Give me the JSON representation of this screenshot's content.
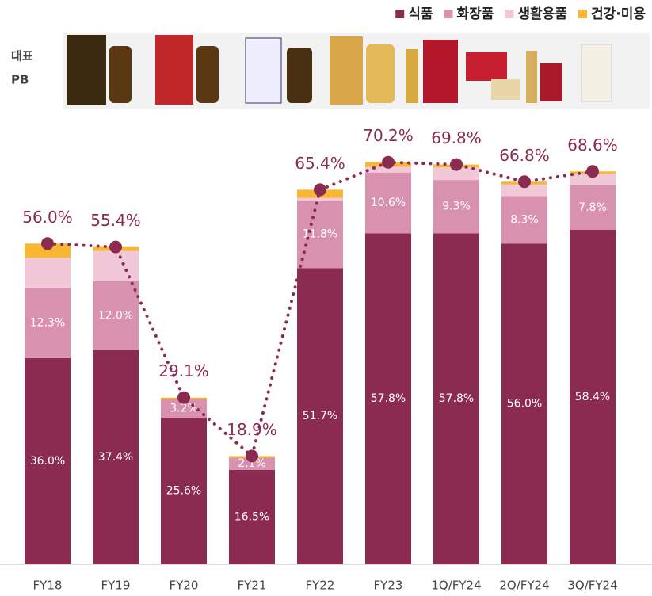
{
  "header": {
    "label_lines": [
      "대표",
      "PB"
    ]
  },
  "chart_data": {
    "type": "bar",
    "stacked": true,
    "categories": [
      "FY18",
      "FY19",
      "FY20",
      "FY21",
      "FY22",
      "FY23",
      "1Q/FY24",
      "2Q/FY24",
      "3Q/FY24"
    ],
    "series": [
      {
        "name": "식품",
        "color": "#8b2b52",
        "values": [
          36.0,
          37.4,
          25.6,
          16.5,
          51.7,
          57.8,
          57.8,
          56.0,
          58.4
        ],
        "value_labels": [
          "36.0%",
          "37.4%",
          "25.6%",
          "16.5%",
          "51.7%",
          "57.8%",
          "57.8%",
          "56.0%",
          "58.4%"
        ]
      },
      {
        "name": "화장품",
        "color": "#d991b0",
        "values": [
          12.3,
          12.0,
          3.2,
          2.1,
          11.8,
          10.6,
          9.3,
          8.3,
          7.8
        ],
        "value_labels": [
          "12.3%",
          "12.0%",
          "3.2%",
          "2.1%",
          "11.8%",
          "10.6%",
          "9.3%",
          "8.3%",
          "7.8%"
        ]
      },
      {
        "name": "생활용품",
        "color": "#f0c8d8",
        "values": [
          5.2,
          5.3,
          0.0,
          0.0,
          0.5,
          1.0,
          2.2,
          2.0,
          2.0
        ]
      },
      {
        "name": "건강·미용",
        "color": "#f7b733",
        "values": [
          2.5,
          0.7,
          0.3,
          0.3,
          1.4,
          0.8,
          0.5,
          0.5,
          0.4
        ]
      }
    ],
    "totals": {
      "color": "#8b2b52",
      "values": [
        56.0,
        55.4,
        29.1,
        18.9,
        65.4,
        70.2,
        69.8,
        66.8,
        68.6
      ],
      "value_labels": [
        "56.0%",
        "55.4%",
        "29.1%",
        "18.9%",
        "65.4%",
        "70.2%",
        "69.8%",
        "66.8%",
        "68.6%"
      ]
    },
    "ylim": [
      0,
      75
    ]
  }
}
